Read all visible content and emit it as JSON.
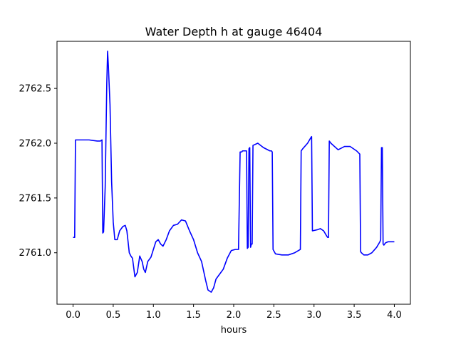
{
  "chart_data": {
    "type": "line",
    "title": "Water Depth h at gauge 46404",
    "xlabel": "hours",
    "ylabel": "",
    "xlim": [
      -0.2,
      4.2
    ],
    "ylim": [
      2760.53,
      2762.93
    ],
    "grid": false,
    "legend": "none",
    "xticks": [
      0.0,
      0.5,
      1.0,
      1.5,
      2.0,
      2.5,
      3.0,
      3.5,
      4.0
    ],
    "xtick_labels": [
      "0.0",
      "0.5",
      "1.0",
      "1.5",
      "2.0",
      "2.5",
      "3.0",
      "3.5",
      "4.0"
    ],
    "yticks": [
      2761.0,
      2761.5,
      2762.0,
      2762.5
    ],
    "ytick_labels": [
      "2761.0",
      "2761.5",
      "2762.0",
      "2762.5"
    ],
    "series": [
      {
        "color": "#0000ff",
        "x": [
          0.0,
          0.02,
          0.03,
          0.1,
          0.2,
          0.3,
          0.34,
          0.36,
          0.37,
          0.38,
          0.4,
          0.42,
          0.43,
          0.44,
          0.46,
          0.48,
          0.5,
          0.52,
          0.55,
          0.58,
          0.62,
          0.65,
          0.67,
          0.7,
          0.72,
          0.74,
          0.77,
          0.8,
          0.83,
          0.86,
          0.88,
          0.9,
          0.93,
          0.97,
          1.0,
          1.03,
          1.06,
          1.09,
          1.12,
          1.16,
          1.2,
          1.25,
          1.3,
          1.35,
          1.4,
          1.45,
          1.5,
          1.55,
          1.6,
          1.65,
          1.68,
          1.72,
          1.75,
          1.78,
          1.82,
          1.87,
          1.92,
          1.97,
          2.02,
          2.06,
          2.08,
          2.1,
          2.11,
          2.16,
          2.17,
          2.18,
          2.19,
          2.2,
          2.21,
          2.22,
          2.23,
          2.24,
          2.3,
          2.37,
          2.45,
          2.47,
          2.48,
          2.49,
          2.52,
          2.6,
          2.68,
          2.76,
          2.83,
          2.84,
          2.86,
          2.92,
          2.96,
          2.97,
          2.98,
          3.04,
          3.08,
          3.12,
          3.16,
          3.17,
          3.18,
          3.19,
          3.21,
          3.3,
          3.38,
          3.45,
          3.53,
          3.57,
          3.58,
          3.59,
          3.62,
          3.67,
          3.72,
          3.78,
          3.82,
          3.83,
          3.84,
          3.85,
          3.86,
          3.87,
          3.88,
          3.89,
          3.92,
          4.0
        ],
        "y": [
          2761.14,
          2761.14,
          2762.03,
          2762.03,
          2762.03,
          2762.02,
          2762.02,
          2762.03,
          2761.18,
          2761.19,
          2761.6,
          2762.55,
          2762.84,
          2762.7,
          2762.35,
          2761.65,
          2761.28,
          2761.12,
          2761.12,
          2761.2,
          2761.24,
          2761.25,
          2761.2,
          2761.0,
          2760.97,
          2760.95,
          2760.78,
          2760.82,
          2760.97,
          2760.92,
          2760.85,
          2760.82,
          2760.92,
          2760.96,
          2761.03,
          2761.1,
          2761.12,
          2761.08,
          2761.06,
          2761.12,
          2761.2,
          2761.25,
          2761.26,
          2761.3,
          2761.29,
          2761.2,
          2761.12,
          2761.0,
          2760.92,
          2760.75,
          2760.66,
          2760.64,
          2760.68,
          2760.76,
          2760.8,
          2760.85,
          2760.95,
          2761.02,
          2761.03,
          2761.03,
          2761.92,
          2761.92,
          2761.93,
          2761.93,
          2761.04,
          2761.05,
          2761.95,
          2761.96,
          2761.05,
          2761.08,
          2761.08,
          2761.98,
          2762.0,
          2761.96,
          2761.93,
          2761.93,
          2761.92,
          2761.03,
          2760.99,
          2760.98,
          2760.98,
          2761.0,
          2761.03,
          2761.93,
          2761.95,
          2762.0,
          2762.05,
          2762.06,
          2761.2,
          2761.21,
          2761.22,
          2761.2,
          2761.15,
          2761.14,
          2761.14,
          2762.02,
          2762.0,
          2761.94,
          2761.97,
          2761.97,
          2761.93,
          2761.9,
          2761.01,
          2761.0,
          2760.98,
          2760.98,
          2761.0,
          2761.05,
          2761.1,
          2761.12,
          2761.96,
          2761.96,
          2761.08,
          2761.07,
          2761.08,
          2761.09,
          2761.1,
          2761.1
        ]
      }
    ]
  }
}
